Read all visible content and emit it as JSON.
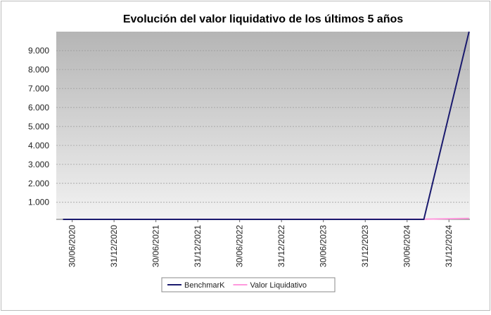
{
  "chart_data": {
    "type": "line",
    "title": "Evolución del valor liquidativo de los últimos 5 años",
    "xlim": [
      2020.31,
      2025.25
    ],
    "xticks": [
      {
        "value": 2020.5,
        "label": "30/06/2020"
      },
      {
        "value": 2021.0,
        "label": "31/12/2020"
      },
      {
        "value": 2021.5,
        "label": "30/06/2021"
      },
      {
        "value": 2022.0,
        "label": "31/12/2021"
      },
      {
        "value": 2022.5,
        "label": "30/06/2022"
      },
      {
        "value": 2023.0,
        "label": "31/12/2022"
      },
      {
        "value": 2023.5,
        "label": "30/06/2023"
      },
      {
        "value": 2024.0,
        "label": "31/12/2023"
      },
      {
        "value": 2024.5,
        "label": "30/06/2024"
      },
      {
        "value": 2025.0,
        "label": "31/12/2024"
      }
    ],
    "ylim": [
      100,
      10000
    ],
    "yticks": [
      {
        "value": 1000,
        "label": "1.000"
      },
      {
        "value": 2000,
        "label": "2.000"
      },
      {
        "value": 3000,
        "label": "3.000"
      },
      {
        "value": 4000,
        "label": "4.000"
      },
      {
        "value": 5000,
        "label": "5.000"
      },
      {
        "value": 6000,
        "label": "6.000"
      },
      {
        "value": 7000,
        "label": "7.000"
      },
      {
        "value": 8000,
        "label": "8.000"
      },
      {
        "value": 9000,
        "label": "9.000"
      }
    ],
    "grid": true,
    "legend": "bottom",
    "series": [
      {
        "name": "BenchmarK",
        "color": "#1a1a6e",
        "x": [
          2020.39,
          2024.7,
          2025.24
        ],
        "values": [
          100,
          100,
          10000
        ]
      },
      {
        "name": "Valor Liquidativo",
        "color": "#ff99dd",
        "x": [
          2020.39,
          2024.7,
          2025.24
        ],
        "values": [
          100,
          110,
          150
        ]
      }
    ]
  }
}
